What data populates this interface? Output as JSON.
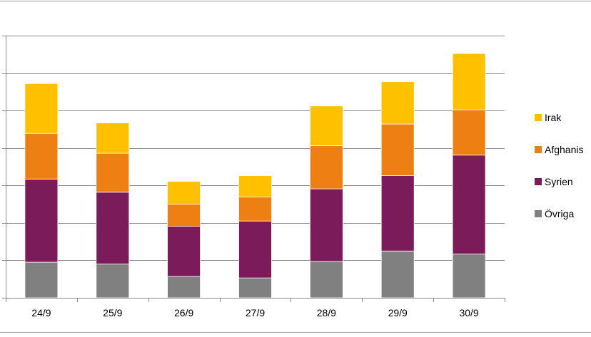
{
  "chart_data": {
    "type": "bar",
    "stacked": true,
    "categories": [
      "24/9",
      "25/9",
      "26/9",
      "27/9",
      "28/9",
      "29/9",
      "30/9"
    ],
    "series": [
      {
        "name": "Övriga",
        "color": "#808080",
        "values": [
          95,
          90,
          57,
          53,
          97,
          125,
          117
        ]
      },
      {
        "name": "Syrien",
        "color": "#7b1b59",
        "values": [
          222,
          192,
          134,
          152,
          194,
          201,
          264
        ]
      },
      {
        "name": "Afghanis",
        "color": "#ee8013",
        "values": [
          122,
          104,
          59,
          64,
          115,
          138,
          121
        ]
      },
      {
        "name": "Irak",
        "color": "#ffc000",
        "values": [
          133,
          81,
          61,
          57,
          106,
          113,
          150
        ]
      }
    ],
    "ylim": [
      0,
      700
    ],
    "y_gridlines": [
      100,
      200,
      300,
      400,
      500,
      600,
      700
    ],
    "grid": true,
    "legend_position": "right"
  }
}
